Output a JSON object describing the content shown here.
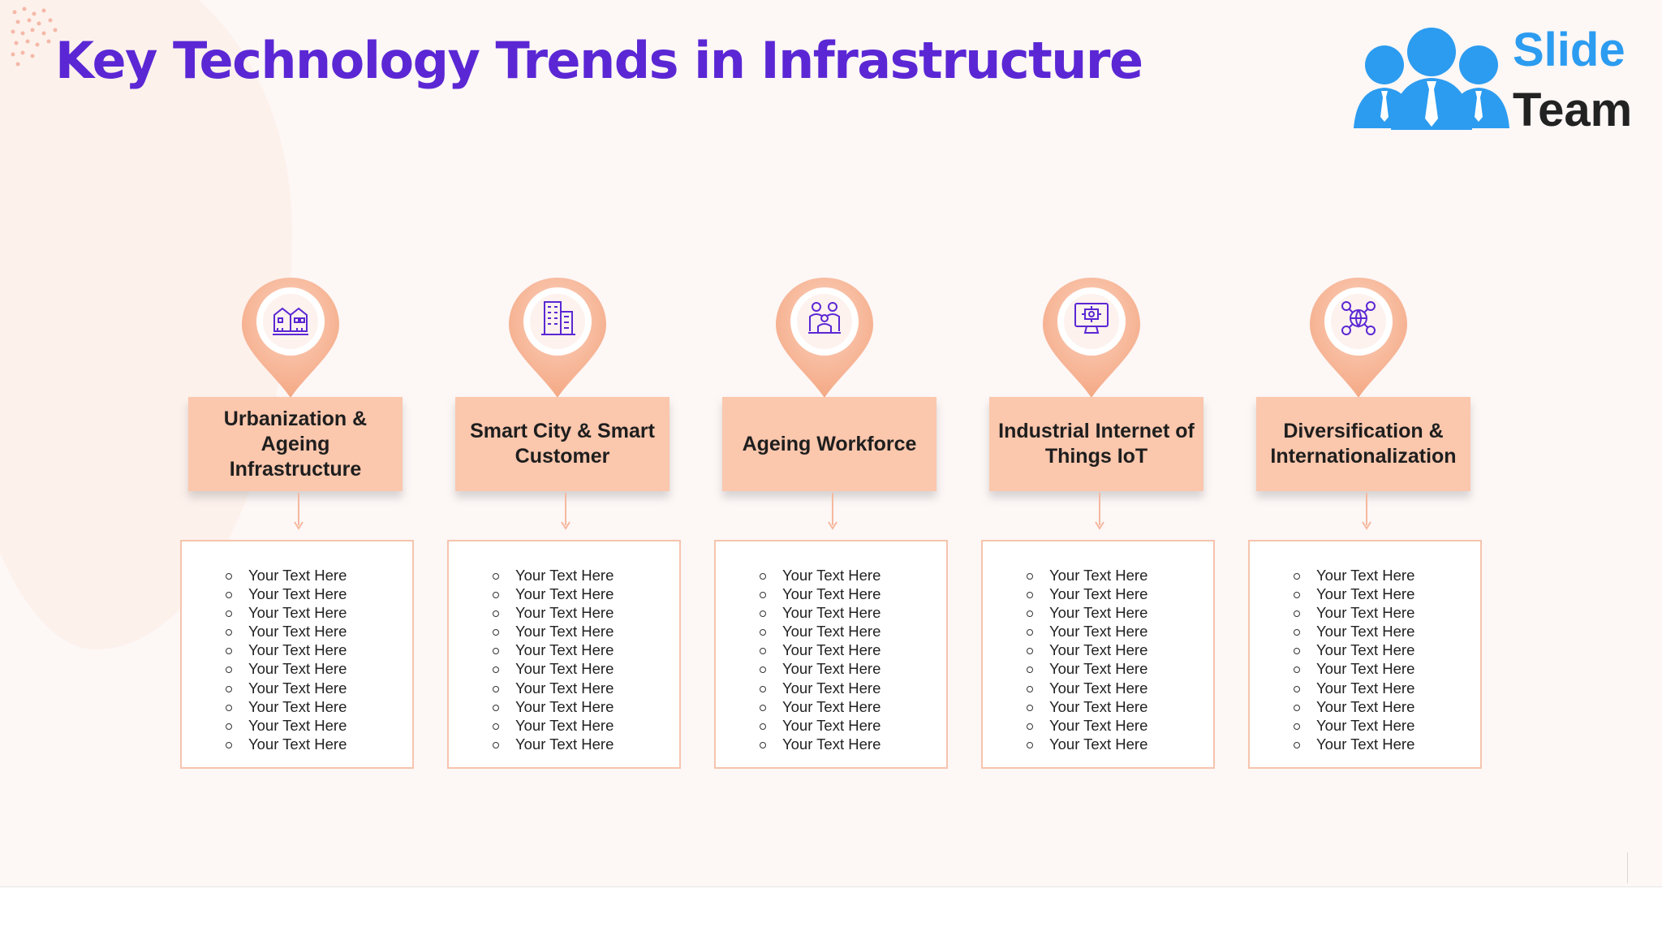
{
  "title": "Key Technology Trends in Infrastructure",
  "logo": {
    "line1": "Slide",
    "line2": "Team"
  },
  "colors": {
    "title": "#5b27d4",
    "accent_peach": "#fbc7ad",
    "pin": "#f7b394",
    "icon": "#5b27d4",
    "logo_blue": "#2c9cf0"
  },
  "columns": [
    {
      "icon": "buildings-icon",
      "label": "Urbanization & Ageing Infrastructure",
      "items": [
        "Your Text Here",
        "Your Text Here",
        "Your Text Here",
        "Your Text Here",
        "Your Text Here",
        "Your Text Here",
        "Your Text Here",
        "Your Text Here",
        "Your Text Here",
        "Your Text Here"
      ]
    },
    {
      "icon": "skyscraper-icon",
      "label": "Smart City & Smart Customer",
      "items": [
        "Your Text Here",
        "Your Text Here",
        "Your Text Here",
        "Your Text Here",
        "Your Text Here",
        "Your Text Here",
        "Your Text Here",
        "Your Text Here",
        "Your Text Here",
        "Your Text Here"
      ]
    },
    {
      "icon": "workforce-people-icon",
      "label": "Ageing Workforce",
      "items": [
        "Your Text Here",
        "Your Text Here",
        "Your Text Here",
        "Your Text Here",
        "Your Text Here",
        "Your Text Here",
        "Your Text Here",
        "Your Text Here",
        "Your Text Here",
        "Your Text Here"
      ]
    },
    {
      "icon": "computer-iot-icon",
      "label": "Industrial Internet of Things IoT",
      "items": [
        "Your Text Here",
        "Your Text Here",
        "Your Text Here",
        "Your Text Here",
        "Your Text Here",
        "Your Text Here",
        "Your Text Here",
        "Your Text Here",
        "Your Text Here",
        "Your Text Here"
      ]
    },
    {
      "icon": "global-network-icon",
      "label": "Diversification & Internationalization",
      "items": [
        "Your Text Here",
        "Your Text Here",
        "Your Text Here",
        "Your Text Here",
        "Your Text Here",
        "Your Text Here",
        "Your Text Here",
        "Your Text Here",
        "Your Text Here",
        "Your Text Here"
      ]
    }
  ]
}
